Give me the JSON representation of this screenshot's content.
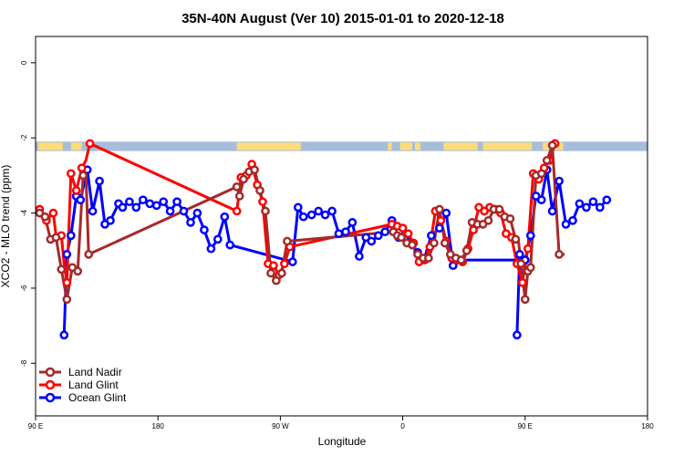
{
  "chart_data": {
    "type": "line",
    "title": "35N-40N August (Ver 10)   2015-01-01 to 2020-12-18",
    "xlabel": "Longitude",
    "ylabel": "XCO2 - MLO trend (ppm)",
    "xlim": [
      90,
      540
    ],
    "ylim": [
      -9.4,
      0.7
    ],
    "x_ticks": [
      {
        "value": 90,
        "label": "90 E"
      },
      {
        "value": 180,
        "label": "180"
      },
      {
        "value": 270,
        "label": "90 W"
      },
      {
        "value": 360,
        "label": "0"
      },
      {
        "value": 450,
        "label": "90 E"
      },
      {
        "value": 540,
        "label": "180"
      }
    ],
    "y_ticks": [
      {
        "value": 0,
        "label": "0"
      },
      {
        "value": -2,
        "label": "-2"
      },
      {
        "value": -4,
        "label": "-4"
      },
      {
        "value": -6,
        "label": "-6"
      },
      {
        "value": -8,
        "label": "-8"
      }
    ],
    "grid": false,
    "legend_position": "bottom-left",
    "land_ocean_band": {
      "y_range": [
        -2.35,
        -2.1
      ],
      "ocean_color": "#a6bddb",
      "land_color": "#fddc7a",
      "land_intervals": [
        [
          92,
          110
        ],
        [
          116,
          124
        ],
        [
          238,
          285
        ],
        [
          349,
          352
        ],
        [
          358,
          367
        ],
        [
          369,
          373
        ],
        [
          390,
          415
        ],
        [
          419,
          455
        ],
        [
          463,
          478
        ]
      ]
    },
    "series": [
      {
        "name": "Land Nadir",
        "color": "#a52a2a",
        "x": [
          93,
          97,
          101,
          105,
          109,
          113,
          117,
          121,
          125,
          127,
          129,
          238,
          240,
          243,
          247,
          251,
          255,
          259,
          263,
          267,
          271,
          275,
          353,
          356,
          359,
          363,
          367,
          371,
          375,
          379,
          383,
          387,
          391,
          395,
          399,
          403,
          407,
          411,
          415,
          419,
          423,
          427,
          431,
          435,
          439,
          443,
          445,
          447,
          450,
          452,
          454,
          458,
          462,
          466,
          470,
          475,
          477,
          479
        ],
        "y": [
          -4.0,
          -4.1,
          -4.7,
          -4.65,
          -5.5,
          -6.3,
          -5.45,
          -5.55,
          -3.0,
          -2.95,
          -5.1,
          -3.3,
          -3.55,
          -3.1,
          -2.9,
          -2.85,
          -3.4,
          -3.95,
          -5.6,
          -5.8,
          -5.6,
          -4.75,
          -4.5,
          -4.6,
          -4.65,
          -4.8,
          -4.85,
          -5.1,
          -5.2,
          -5.2,
          -4.8,
          -3.9,
          -4.8,
          -5.1,
          -5.2,
          -5.25,
          -5.0,
          -4.25,
          -4.3,
          -4.3,
          -4.2,
          -3.9,
          -3.9,
          -4.1,
          -4.15,
          -4.7,
          -4.7,
          -5.35,
          -6.3,
          -5.55,
          -5.45,
          -3.0,
          -2.95,
          -2.6,
          -2.2,
          -5.1,
          -5.1,
          -5.1
        ],
        "markers_x": [
          93,
          97,
          101,
          105,
          109,
          113,
          117,
          121,
          125,
          129,
          238,
          240,
          243,
          247,
          251,
          255,
          259,
          263,
          267,
          271,
          275,
          353,
          356,
          359,
          363,
          367,
          371,
          375,
          379,
          383,
          387,
          391,
          395,
          399,
          403,
          407,
          411,
          415,
          419,
          423,
          427,
          431,
          435,
          439,
          443,
          447,
          450,
          452,
          454,
          458,
          462,
          466,
          470,
          475
        ],
        "markers_y": [
          -4.0,
          -4.1,
          -4.7,
          -4.65,
          -5.5,
          -6.3,
          -5.45,
          -5.55,
          -3.0,
          -5.1,
          -3.3,
          -3.55,
          -3.1,
          -2.9,
          -2.85,
          -3.4,
          -3.95,
          -5.6,
          -5.8,
          -5.6,
          -4.75,
          -4.5,
          -4.6,
          -4.65,
          -4.8,
          -4.85,
          -5.1,
          -5.2,
          -5.2,
          -4.8,
          -3.9,
          -4.8,
          -5.1,
          -5.2,
          -5.25,
          -5.0,
          -4.25,
          -4.3,
          -4.3,
          -4.2,
          -3.9,
          -3.9,
          -4.1,
          -4.15,
          -4.7,
          -5.35,
          -6.3,
          -5.55,
          -5.45,
          -3.0,
          -2.95,
          -2.6,
          -2.2,
          -5.1
        ]
      },
      {
        "name": "Land Glint",
        "color": "#ff0000",
        "x": [
          93,
          98,
          103,
          105,
          109,
          111,
          113,
          116,
          120,
          124,
          127,
          130,
          238,
          241,
          245,
          249,
          253,
          257,
          261,
          265,
          269,
          273,
          277,
          352,
          356,
          360,
          364,
          368,
          372,
          376,
          380,
          384,
          388,
          392,
          396,
          400,
          404,
          408,
          412,
          416,
          420,
          424,
          428,
          432,
          436,
          440,
          444,
          448,
          452,
          456,
          460,
          464,
          468,
          472,
          474
        ],
        "y": [
          -3.9,
          -4.2,
          -4.0,
          -4.6,
          -4.6,
          -5.35,
          -5.85,
          -2.95,
          -3.4,
          -2.8,
          -2.6,
          -2.15,
          -3.95,
          -3.05,
          -3.0,
          -2.7,
          -3.25,
          -3.7,
          -5.35,
          -5.4,
          -5.65,
          -5.35,
          -4.9,
          -4.3,
          -4.35,
          -4.4,
          -4.55,
          -4.8,
          -5.3,
          -5.25,
          -4.9,
          -3.95,
          -4.2,
          -4.75,
          -5.2,
          -5.25,
          -5.3,
          -4.95,
          -4.45,
          -3.85,
          -3.95,
          -3.85,
          -3.9,
          -4.0,
          -4.55,
          -4.65,
          -5.35,
          -5.85,
          -4.95,
          -2.95,
          -3.1,
          -2.8,
          -2.6,
          -2.15,
          -2.15
        ],
        "markers_x": [
          93,
          98,
          103,
          109,
          113,
          116,
          120,
          124,
          130,
          238,
          241,
          245,
          249,
          253,
          257,
          261,
          265,
          269,
          273,
          277,
          352,
          356,
          360,
          364,
          368,
          372,
          376,
          380,
          384,
          388,
          392,
          396,
          400,
          404,
          408,
          412,
          416,
          420,
          424,
          428,
          432,
          436,
          440,
          444,
          448,
          452,
          456,
          460,
          464,
          468,
          472
        ],
        "markers_y": [
          -3.9,
          -4.2,
          -4.0,
          -4.6,
          -5.85,
          -2.95,
          -3.4,
          -2.8,
          -2.15,
          -3.95,
          -3.05,
          -3.0,
          -2.7,
          -3.25,
          -3.7,
          -5.35,
          -5.4,
          -5.65,
          -5.35,
          -4.9,
          -4.3,
          -4.35,
          -4.4,
          -4.55,
          -4.8,
          -5.3,
          -5.25,
          -4.9,
          -3.95,
          -4.2,
          -4.75,
          -5.2,
          -5.25,
          -5.3,
          -4.95,
          -4.45,
          -3.85,
          -3.95,
          -3.85,
          -3.9,
          -4.0,
          -4.55,
          -4.65,
          -5.35,
          -5.85,
          -4.95,
          -2.95,
          -3.1,
          -2.8,
          -2.6,
          -2.15
        ]
      },
      {
        "name": "Ocean Glint",
        "color": "#0000ff",
        "x": [
          120,
          123,
          128,
          132,
          137,
          141,
          145,
          151,
          154,
          159,
          164,
          169,
          174,
          179,
          184,
          189,
          194,
          199,
          204,
          209,
          214,
          219,
          224,
          229,
          233,
          279,
          283,
          287,
          293,
          298,
          303,
          308,
          313,
          318,
          323,
          328,
          333,
          337,
          342,
          347,
          352,
          357,
          362,
          367,
          371,
          376,
          381,
          387,
          392,
          397,
          402,
          450,
          454,
          458,
          462,
          466,
          470,
          475,
          480,
          485,
          490,
          495,
          500,
          505,
          510
        ],
        "y": [
          -3.55,
          -3.65,
          -2.85,
          -3.95,
          -3.15,
          -4.3,
          -4.2,
          -3.75,
          -3.85,
          -3.7,
          -3.85,
          -3.65,
          -3.75,
          -3.8,
          -3.7,
          -3.95,
          -3.7,
          -3.95,
          -4.25,
          -4.0,
          -4.45,
          -4.95,
          -4.7,
          -4.1,
          -4.85,
          -5.3,
          -3.85,
          -4.1,
          -4.05,
          -3.95,
          -4.05,
          -3.95,
          -4.55,
          -4.5,
          -4.25,
          -5.15,
          -4.65,
          -4.75,
          -4.6,
          -4.5,
          -4.2,
          -4.65,
          -4.55,
          -4.85,
          -5.05,
          -5.2,
          -4.6,
          -4.4,
          -4.0,
          -5.4,
          -5.25,
          -5.25,
          -4.6,
          -3.55,
          -3.65,
          -2.85,
          -3.95,
          -3.15,
          -4.3,
          -4.2,
          -3.75,
          -3.85,
          -3.7,
          -3.85,
          -3.65
        ],
        "prefix_x": [
          111,
          113,
          116,
          120
        ],
        "prefix_y": [
          -7.25,
          -5.1,
          -4.6,
          -3.55
        ],
        "mid_x": [
          444,
          446,
          450
        ],
        "mid_y": [
          -7.25,
          -5.1,
          -5.25
        ]
      }
    ]
  },
  "legend": {
    "items": [
      {
        "label": "Land Nadir",
        "color": "#a52a2a"
      },
      {
        "label": "Land Glint",
        "color": "#ff0000"
      },
      {
        "label": "Ocean Glint",
        "color": "#0000ff"
      }
    ]
  }
}
